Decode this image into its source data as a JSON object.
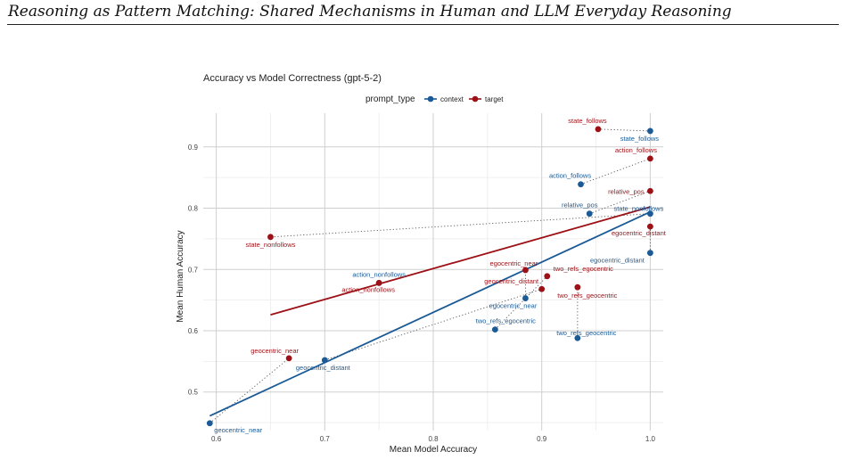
{
  "header": {
    "running_title": "Reasoning as Pattern Matching: Shared Mechanisms in Human and LLM Everyday Reasoning"
  },
  "chart_data": {
    "type": "scatter",
    "title": "Accuracy vs Model Correctness (gpt-5-2)",
    "xlabel": "Mean Model Accuracy",
    "ylabel": "Mean Human Accuracy",
    "xlim": [
      0.588,
      1.012
    ],
    "ylim": [
      0.437,
      0.955
    ],
    "x_ticks": [
      0.6,
      0.7,
      0.8,
      0.9,
      1.0
    ],
    "x_tick_labels": [
      "0.6",
      "0.7",
      "0.8",
      "0.9",
      "1.0"
    ],
    "y_ticks": [
      0.5,
      0.6,
      0.7,
      0.8,
      0.9
    ],
    "y_tick_labels": [
      "0.5",
      "0.6",
      "0.7",
      "0.8",
      "0.9"
    ],
    "grid": true,
    "legend": {
      "title": "prompt_type",
      "position": "top"
    },
    "series": [
      {
        "name": "context",
        "color": "#1a5a96",
        "points": [
          {
            "label": "state_follows",
            "x": 1.0,
            "y": 0.926
          },
          {
            "label": "action_follows",
            "x": 0.936,
            "y": 0.839
          },
          {
            "label": "relative_pos",
            "x": 0.944,
            "y": 0.791
          },
          {
            "label": "state_nonfollows",
            "x": 1.0,
            "y": 0.791
          },
          {
            "label": "egocentric_distant",
            "x": 1.0,
            "y": 0.727
          },
          {
            "label": "action_nonfollows",
            "x": 0.75,
            "y": 0.678
          },
          {
            "label": "egocentric_near",
            "x": 0.885,
            "y": 0.653
          },
          {
            "label": "two_refs_egocentric",
            "x": 0.857,
            "y": 0.602
          },
          {
            "label": "two_refs_geocentric",
            "x": 0.933,
            "y": 0.588
          },
          {
            "label": "geocentric_distant",
            "x": 0.7,
            "y": 0.552
          },
          {
            "label": "geocentric_near",
            "x": 0.594,
            "y": 0.449
          }
        ],
        "trend": {
          "x": [
            0.594,
            1.0
          ],
          "y": [
            0.461,
            0.794
          ]
        }
      },
      {
        "name": "target",
        "color": "#9c1016",
        "points": [
          {
            "label": "state_follows",
            "x": 0.952,
            "y": 0.929
          },
          {
            "label": "action_follows",
            "x": 1.0,
            "y": 0.881
          },
          {
            "label": "relative_pos",
            "x": 1.0,
            "y": 0.828
          },
          {
            "label": "egocentric_distant",
            "x": 1.0,
            "y": 0.77
          },
          {
            "label": "state_nonfollows",
            "x": 0.65,
            "y": 0.753
          },
          {
            "label": "egocentric_near",
            "x": 0.885,
            "y": 0.699
          },
          {
            "label": "two_refs_egocentric",
            "x": 0.905,
            "y": 0.689
          },
          {
            "label": "action_nonfollows",
            "x": 0.75,
            "y": 0.678
          },
          {
            "label": "two_refs_geocentric",
            "x": 0.933,
            "y": 0.671
          },
          {
            "label": "geocentric_distant",
            "x": 0.9,
            "y": 0.668
          },
          {
            "label": "geocentric_near",
            "x": 0.667,
            "y": 0.555
          }
        ],
        "trend": {
          "x": [
            0.65,
            1.0
          ],
          "y": [
            0.626,
            0.802
          ]
        }
      }
    ]
  }
}
